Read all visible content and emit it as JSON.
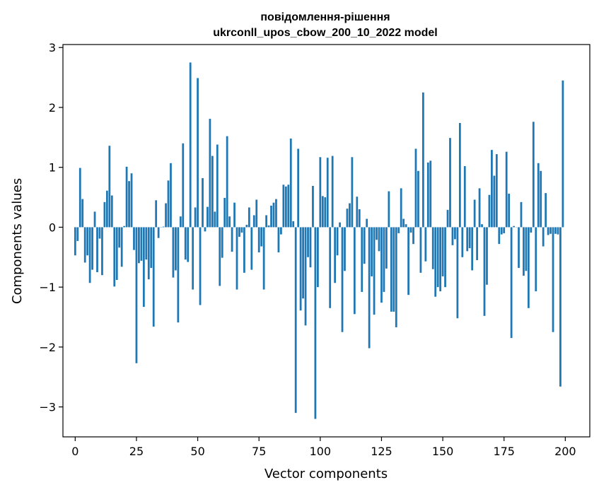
{
  "chart_data": {
    "type": "bar",
    "title": [
      "повідомлення-рішення",
      "ukrconll_upos_cbow_200_10_2022 model"
    ],
    "xlabel": "Vector components",
    "ylabel": "Components values",
    "xlim": [
      -5,
      210
    ],
    "ylim": [
      -3.5,
      3.05
    ],
    "xticks": [
      0,
      25,
      50,
      75,
      100,
      125,
      150,
      175,
      200
    ],
    "yticks": [
      -3,
      -2,
      -1,
      0,
      1,
      2,
      3
    ],
    "ytick_labels": [
      "−3",
      "−2",
      "−1",
      "0",
      "1",
      "2",
      "3"
    ],
    "grid": false,
    "bar_color": "#1f77b4",
    "x": [
      0,
      1,
      2,
      3,
      4,
      5,
      6,
      7,
      8,
      9,
      10,
      11,
      12,
      13,
      14,
      15,
      16,
      17,
      18,
      19,
      20,
      21,
      22,
      23,
      24,
      25,
      26,
      27,
      28,
      29,
      30,
      31,
      32,
      33,
      34,
      35,
      36,
      37,
      38,
      39,
      40,
      41,
      42,
      43,
      44,
      45,
      46,
      47,
      48,
      49,
      50,
      51,
      52,
      53,
      54,
      55,
      56,
      57,
      58,
      59,
      60,
      61,
      62,
      63,
      64,
      65,
      66,
      67,
      68,
      69,
      70,
      71,
      72,
      73,
      74,
      75,
      76,
      77,
      78,
      79,
      80,
      81,
      82,
      83,
      84,
      85,
      86,
      87,
      88,
      89,
      90,
      91,
      92,
      93,
      94,
      95,
      96,
      97,
      98,
      99,
      100,
      101,
      102,
      103,
      104,
      105,
      106,
      107,
      108,
      109,
      110,
      111,
      112,
      113,
      114,
      115,
      116,
      117,
      118,
      119,
      120,
      121,
      122,
      123,
      124,
      125,
      126,
      127,
      128,
      129,
      130,
      131,
      132,
      133,
      134,
      135,
      136,
      137,
      138,
      139,
      140,
      141,
      142,
      143,
      144,
      145,
      146,
      147,
      148,
      149,
      150,
      151,
      152,
      153,
      154,
      155,
      156,
      157,
      158,
      159,
      160,
      161,
      162,
      163,
      164,
      165,
      166,
      167,
      168,
      169,
      170,
      171,
      172,
      173,
      174,
      175,
      176,
      177,
      178,
      179,
      180,
      181,
      182,
      183,
      184,
      185,
      186,
      187,
      188,
      189,
      190,
      191,
      192,
      193,
      194,
      195,
      196,
      197,
      198,
      199
    ],
    "values": [
      -0.47,
      -0.23,
      0.99,
      0.47,
      -0.59,
      -0.47,
      -0.93,
      -0.71,
      0.26,
      -0.75,
      -0.19,
      -0.8,
      0.42,
      0.61,
      1.36,
      0.53,
      -0.99,
      -0.88,
      -0.34,
      -0.66,
      0.02,
      1.01,
      0.77,
      0.9,
      -0.38,
      -2.27,
      -0.6,
      -0.56,
      -1.33,
      -0.54,
      -0.87,
      -0.68,
      -1.66,
      0.45,
      -0.18,
      0.0,
      0.01,
      0.4,
      0.78,
      1.07,
      -0.84,
      -0.72,
      -1.59,
      0.18,
      1.4,
      -0.54,
      -0.58,
      2.75,
      -1.04,
      0.33,
      2.49,
      -1.3,
      0.82,
      -0.07,
      0.34,
      1.81,
      1.19,
      0.26,
      1.38,
      -0.98,
      -0.51,
      0.49,
      1.52,
      0.18,
      -0.41,
      0.41,
      -1.04,
      -0.16,
      -0.09,
      -0.76,
      0.04,
      0.33,
      -0.71,
      0.2,
      0.46,
      -0.42,
      -0.32,
      -1.04,
      0.2,
      0.03,
      0.36,
      0.41,
      0.47,
      -0.42,
      -0.12,
      0.71,
      0.68,
      0.71,
      1.48,
      0.1,
      -3.1,
      1.31,
      -1.39,
      -1.19,
      -1.64,
      -0.5,
      -0.67,
      0.69,
      -3.2,
      -1.0,
      1.17,
      0.52,
      0.5,
      1.16,
      -1.35,
      1.19,
      -0.93,
      -0.47,
      0.08,
      -1.75,
      -0.73,
      0.31,
      0.4,
      1.17,
      -1.45,
      0.51,
      0.3,
      -1.08,
      -0.61,
      0.14,
      -2.02,
      -0.82,
      -1.46,
      -0.21,
      -0.4,
      -1.26,
      -1.08,
      -0.69,
      0.6,
      -1.41,
      -1.41,
      -1.67,
      -0.1,
      0.65,
      0.14,
      0.05,
      -1.13,
      -0.09,
      -0.28,
      1.31,
      0.94,
      -0.76,
      2.25,
      -0.57,
      1.08,
      1.11,
      -0.7,
      -1.16,
      -1.0,
      -1.07,
      -0.82,
      -1.0,
      0.29,
      1.49,
      -0.3,
      -0.2,
      -1.52,
      1.74,
      -0.5,
      1.02,
      -0.4,
      -0.35,
      -0.72,
      0.46,
      -0.55,
      0.65,
      0.05,
      -1.48,
      -0.96,
      0.54,
      1.29,
      0.86,
      1.22,
      -0.28,
      -0.12,
      -0.1,
      1.26,
      0.56,
      -1.85,
      0.02,
      0.0,
      -0.68,
      0.42,
      -0.81,
      -0.73,
      -1.35,
      -0.09,
      1.76,
      -1.07,
      1.07,
      0.94,
      -0.32,
      0.57,
      -0.13,
      -0.11,
      -1.75,
      -0.11,
      -0.12,
      -2.66,
      2.45
    ]
  }
}
